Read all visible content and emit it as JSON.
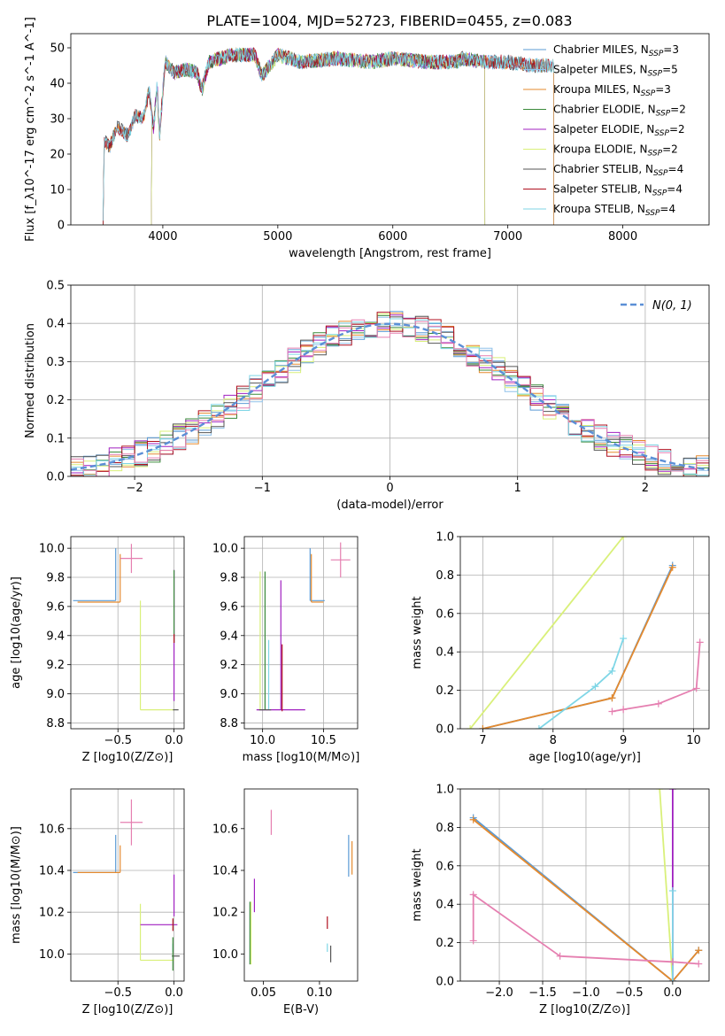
{
  "figure_title": "PLATE=1004, MJD=52723, FIBERID=0455, z=0.083",
  "colors": {
    "Chabrier MILES": "#5b9bd5",
    "Salpeter MILES": "#8fc1ea",
    "Kroupa MILES": "#e58a2e",
    "Chabrier ELODIE": "#3a8a3a",
    "Salpeter ELODIE": "#a020c0",
    "Kroupa ELODIE": "#d9f07a",
    "Chabrier STELIB": "#555555",
    "Salpeter STELIB": "#b01020",
    "Kroupa STELIB": "#7fd6e6",
    "pink": "#e57fb0",
    "normal_curve": "#5b8fd6",
    "grid": "#b0b0b0"
  },
  "chart_data": [
    {
      "id": "spectrum",
      "type": "line",
      "xlabel": "wavelength [Angstrom, rest frame]",
      "ylabel": "Flux [f_λ10^-17 erg cm^-2 s^-1 A^-1]",
      "xlim": [
        3200,
        8750
      ],
      "ylim": [
        0,
        54
      ],
      "xticks": [
        4000,
        5000,
        6000,
        7000,
        8000
      ],
      "yticks": [
        0,
        10,
        20,
        30,
        40,
        50
      ],
      "grid": false,
      "legend_position": "right",
      "legend": [
        {
          "name": "Chabrier MILES",
          "n": "3"
        },
        {
          "name": "Salpeter MILES",
          "n": "5"
        },
        {
          "name": "Kroupa MILES",
          "n": "3"
        },
        {
          "name": "Chabrier ELODIE",
          "n": "2"
        },
        {
          "name": "Salpeter ELODIE",
          "n": "2"
        },
        {
          "name": "Kroupa ELODIE",
          "n": "2"
        },
        {
          "name": "Chabrier STELIB",
          "n": "4"
        },
        {
          "name": "Salpeter STELIB",
          "n": "4"
        },
        {
          "name": "Kroupa STELIB",
          "n": "4"
        }
      ],
      "anchors": [
        [
          3480,
          0
        ],
        [
          3490,
          24
        ],
        [
          3540,
          22
        ],
        [
          3600,
          28
        ],
        [
          3700,
          25
        ],
        [
          3760,
          31
        ],
        [
          3830,
          30
        ],
        [
          3880,
          38
        ],
        [
          3920,
          27
        ],
        [
          3950,
          40
        ],
        [
          3970,
          25
        ],
        [
          4020,
          46
        ],
        [
          4100,
          43
        ],
        [
          4200,
          44
        ],
        [
          4300,
          43
        ],
        [
          4340,
          38
        ],
        [
          4400,
          46
        ],
        [
          4600,
          48
        ],
        [
          4800,
          48
        ],
        [
          4860,
          42
        ],
        [
          5000,
          48
        ],
        [
          5200,
          46
        ],
        [
          5500,
          47
        ],
        [
          5800,
          46
        ],
        [
          6000,
          47
        ],
        [
          6300,
          46
        ],
        [
          6563,
          46
        ],
        [
          6600,
          47
        ],
        [
          6800,
          46
        ],
        [
          7000,
          46
        ],
        [
          7200,
          45
        ],
        [
          7400,
          45
        ]
      ],
      "cutoffs": {
        "Chabrier MILES": [
          3480,
          7400
        ],
        "Salpeter MILES": [
          3480,
          7400
        ],
        "Kroupa MILES": [
          3480,
          7400
        ],
        "Chabrier ELODIE": [
          3900,
          6800
        ],
        "Salpeter ELODIE": [
          3900,
          6800
        ],
        "Kroupa ELODIE": [
          3900,
          6800
        ],
        "Chabrier STELIB": [
          3200,
          8750
        ],
        "Salpeter STELIB": [
          3200,
          8750
        ],
        "Kroupa STELIB": [
          3200,
          8750
        ]
      }
    },
    {
      "id": "residuals",
      "type": "histogram",
      "xlabel": "(data-model)/error",
      "ylabel": "Normed distribution",
      "xlim": [
        -2.5,
        2.5
      ],
      "ylim": [
        0,
        0.5
      ],
      "xticks": [
        -2,
        -1,
        0,
        1,
        2
      ],
      "yticks": [
        0.0,
        0.1,
        0.2,
        0.3,
        0.4,
        0.5
      ],
      "grid": true,
      "legend_position": "top-right",
      "legend": [
        "N(0, 1)"
      ],
      "bin_width": 0.1,
      "sigma": 1.0
    },
    {
      "id": "z-age",
      "type": "scatter",
      "xlabel": "Z [log10(Z/Z⊙)]",
      "ylabel": "age [log10(age/yr)]",
      "xlim": [
        -0.92,
        0.09
      ],
      "ylim": [
        8.76,
        10.08
      ],
      "xticks": [
        -0.5,
        0.0
      ],
      "yticks": [
        8.8,
        9.0,
        9.2,
        9.4,
        9.6,
        9.8,
        10.0
      ],
      "grid": true,
      "errorbars": [
        {
          "series": "Chabrier MILES",
          "x": -0.52,
          "y": 9.64,
          "x_err": [
            0.38,
            0.0
          ],
          "y_err": [
            0.0,
            0.36
          ]
        },
        {
          "series": "Kroupa MILES",
          "x": -0.48,
          "y": 9.63,
          "x_err": [
            0.38,
            0.0
          ],
          "y_err": [
            0.0,
            0.33
          ]
        },
        {
          "series": "pink",
          "x": -0.38,
          "y": 9.93,
          "x_err": [
            0.1,
            0.1
          ],
          "y_err": [
            0.1,
            0.1
          ]
        },
        {
          "series": "Kroupa ELODIE",
          "x": -0.3,
          "y": 8.89,
          "x_err": [
            0.0,
            0.3
          ],
          "y_err": [
            0.0,
            0.75
          ]
        },
        {
          "series": "Salpeter ELODIE",
          "x": 0.0,
          "y": 9.4,
          "x_err": [
            0.0,
            0.0
          ],
          "y_err": [
            0.45,
            0.45
          ]
        },
        {
          "series": "Chabrier ELODIE",
          "x": 0.0,
          "y": 9.6,
          "x_err": [
            0.0,
            0.0
          ],
          "y_err": [
            0.25,
            0.25
          ]
        },
        {
          "series": "Chabrier STELIB",
          "x": -0.01,
          "y": 8.89,
          "x_err": [
            0.0,
            0.05
          ],
          "y_err": [
            0.0,
            0.0
          ]
        },
        {
          "series": "Salpeter STELIB",
          "x": 0.0,
          "y": 9.38,
          "x_err": [
            0.0,
            0.0
          ],
          "y_err": [
            0.03,
            0.03
          ]
        }
      ]
    },
    {
      "id": "mass-age",
      "type": "scatter",
      "xlabel": "mass [log10(M/M⊙)]",
      "ylabel": "",
      "xlim": [
        9.85,
        10.78
      ],
      "ylim": [
        8.76,
        10.08
      ],
      "xticks": [
        10.0,
        10.5
      ],
      "yticks": [
        8.8,
        9.0,
        9.2,
        9.4,
        9.6,
        9.8,
        10.0
      ],
      "grid": true,
      "errorbars": [
        {
          "series": "Chabrier MILES",
          "x": 10.39,
          "y": 9.64,
          "x_err": [
            0.0,
            0.12
          ],
          "y_err": [
            0.0,
            0.36
          ]
        },
        {
          "series": "Kroupa MILES",
          "x": 10.4,
          "y": 9.63,
          "x_err": [
            0.0,
            0.1
          ],
          "y_err": [
            0.0,
            0.33
          ]
        },
        {
          "series": "pink",
          "x": 10.64,
          "y": 9.92,
          "x_err": [
            0.08,
            0.08
          ],
          "y_err": [
            0.12,
            0.12
          ]
        },
        {
          "series": "Kroupa ELODIE",
          "x": 9.98,
          "y": 8.89,
          "x_err": [
            0.0,
            0.0
          ],
          "y_err": [
            0.0,
            0.95
          ]
        },
        {
          "series": "Chabrier ELODIE",
          "x": 10.02,
          "y": 8.89,
          "x_err": [
            0.0,
            0.0
          ],
          "y_err": [
            0.0,
            0.95
          ]
        },
        {
          "series": "Kroupa STELIB",
          "x": 10.05,
          "y": 8.89,
          "x_err": [
            0.0,
            0.0
          ],
          "y_err": [
            0.0,
            0.48
          ]
        },
        {
          "series": "Salpeter ELODIE",
          "x": 10.15,
          "y": 8.89,
          "x_err": [
            0.2,
            0.2
          ],
          "y_err": [
            0.0,
            0.89
          ]
        },
        {
          "series": "Salpeter STELIB",
          "x": 10.16,
          "y": 8.88,
          "x_err": [
            0.0,
            0.0
          ],
          "y_err": [
            0.0,
            0.46
          ]
        },
        {
          "series": "Chabrier STELIB",
          "x": 10.02,
          "y": 8.89,
          "x_err": [
            0.05,
            0.05
          ],
          "y_err": [
            0.0,
            0.0
          ]
        }
      ]
    },
    {
      "id": "age-weight",
      "type": "line",
      "xlabel": "age [log10(age/yr)]",
      "ylabel": "mass weight",
      "xlim": [
        6.68,
        10.22
      ],
      "ylim": [
        0,
        1
      ],
      "xticks": [
        7,
        8,
        9,
        10
      ],
      "yticks": [
        0.0,
        0.2,
        0.4,
        0.6,
        0.8,
        1.0
      ],
      "grid": true,
      "series": [
        {
          "name": "Kroupa ELODIE",
          "points": [
            [
              6.82,
              0
            ],
            [
              9.0,
              1.0
            ]
          ]
        },
        {
          "name": "Chabrier MILES",
          "points": [
            [
              7.0,
              0
            ],
            [
              8.84,
              0.16
            ],
            [
              9.7,
              0.85
            ]
          ]
        },
        {
          "name": "Kroupa MILES",
          "points": [
            [
              7.0,
              0
            ],
            [
              8.84,
              0.16
            ],
            [
              9.7,
              0.84
            ]
          ]
        },
        {
          "name": "Kroupa STELIB",
          "points": [
            [
              7.8,
              0
            ],
            [
              8.6,
              0.22
            ],
            [
              8.84,
              0.3
            ],
            [
              9.0,
              0.47
            ]
          ]
        },
        {
          "name": "pink",
          "points": [
            [
              8.84,
              0.09
            ],
            [
              9.0,
              0.1
            ],
            [
              9.5,
              0.13
            ],
            [
              10.04,
              0.21
            ],
            [
              10.09,
              0.45
            ]
          ]
        }
      ]
    },
    {
      "id": "z-mass",
      "type": "scatter",
      "xlabel": "Z [log10(Z/Z⊙)]",
      "ylabel": "mass [log10(M/M⊙)]",
      "xlim": [
        -0.92,
        0.09
      ],
      "ylim": [
        9.87,
        10.79
      ],
      "xticks": [
        -0.5,
        0.0
      ],
      "yticks": [
        10.0,
        10.2,
        10.4,
        10.6
      ],
      "grid": true,
      "errorbars": [
        {
          "series": "Chabrier MILES",
          "x": -0.52,
          "y": 10.39,
          "x_err": [
            0.38,
            0.0
          ],
          "y_err": [
            0.0,
            0.18
          ]
        },
        {
          "series": "Kroupa MILES",
          "x": -0.48,
          "y": 10.39,
          "x_err": [
            0.38,
            0.0
          ],
          "y_err": [
            0.0,
            0.13
          ]
        },
        {
          "series": "pink",
          "x": -0.38,
          "y": 10.63,
          "x_err": [
            0.1,
            0.1
          ],
          "y_err": [
            0.11,
            0.11
          ]
        },
        {
          "series": "Kroupa ELODIE",
          "x": -0.3,
          "y": 9.97,
          "x_err": [
            0.0,
            0.3
          ],
          "y_err": [
            0.0,
            0.27
          ]
        },
        {
          "series": "Salpeter ELODIE",
          "x": -0.3,
          "y": 10.14,
          "x_err": [
            0.0,
            0.33
          ],
          "y_err": [
            0.0,
            0.0
          ]
        },
        {
          "series": "Salpeter STELIB",
          "x": -0.01,
          "y": 10.14,
          "x_err": [
            0.0,
            0.0
          ],
          "y_err": [
            0.03,
            0.03
          ]
        },
        {
          "series": "Chabrier STELIB",
          "x": 0.0,
          "y": 9.99,
          "x_err": [
            0.02,
            0.05
          ],
          "y_err": [
            0.0,
            0.0
          ]
        },
        {
          "series": "Kroupa STELIB",
          "x": -0.01,
          "y": 10.03,
          "x_err": [
            0.0,
            0.0
          ],
          "y_err": [
            0.02,
            0.02
          ]
        },
        {
          "series": "Chabrier ELODIE",
          "x": -0.01,
          "y": 10.0,
          "x_err": [
            0.0,
            0.0
          ],
          "y_err": [
            0.08,
            0.08
          ]
        },
        {
          "series": "Salpeter ELODIE",
          "x": 0.0,
          "y": 10.28,
          "x_err": [
            0.0,
            0.0
          ],
          "y_err": [
            0.1,
            0.1
          ]
        }
      ]
    },
    {
      "id": "ebv-mass",
      "type": "scatter",
      "xlabel": "E(B-V)",
      "ylabel": "",
      "xlim": [
        0.033,
        0.134
      ],
      "ylim": [
        9.87,
        10.79
      ],
      "xticks": [
        0.05,
        0.1
      ],
      "yticks": [
        10.0,
        10.2,
        10.4,
        10.6
      ],
      "grid": false,
      "errorbars": [
        {
          "series": "Chabrier ELODIE",
          "x": 0.038,
          "y": 10.1,
          "x_err": [
            0.0,
            0.0
          ],
          "y_err": [
            0.15,
            0.15
          ]
        },
        {
          "series": "Kroupa ELODIE",
          "x": 0.039,
          "y": 10.1,
          "x_err": [
            0.0,
            0.0
          ],
          "y_err": [
            0.15,
            0.15
          ]
        },
        {
          "series": "Salpeter ELODIE",
          "x": 0.042,
          "y": 10.28,
          "x_err": [
            0.0,
            0.0
          ],
          "y_err": [
            0.08,
            0.08
          ]
        },
        {
          "series": "pink",
          "x": 0.057,
          "y": 10.63,
          "x_err": [
            0.0,
            0.0
          ],
          "y_err": [
            0.06,
            0.06
          ]
        },
        {
          "series": "Salpeter STELIB",
          "x": 0.107,
          "y": 10.15,
          "x_err": [
            0.0,
            0.0
          ],
          "y_err": [
            0.03,
            0.03
          ]
        },
        {
          "series": "Kroupa STELIB",
          "x": 0.107,
          "y": 10.03,
          "x_err": [
            0.0,
            0.0
          ],
          "y_err": [
            0.02,
            0.02
          ]
        },
        {
          "series": "Chabrier STELIB",
          "x": 0.11,
          "y": 10.0,
          "x_err": [
            0.0,
            0.0
          ],
          "y_err": [
            0.04,
            0.04
          ]
        },
        {
          "series": "Chabrier MILES",
          "x": 0.126,
          "y": 10.47,
          "x_err": [
            0.0,
            0.0
          ],
          "y_err": [
            0.1,
            0.1
          ]
        },
        {
          "series": "Kroupa MILES",
          "x": 0.129,
          "y": 10.46,
          "x_err": [
            0.0,
            0.0
          ],
          "y_err": [
            0.08,
            0.08
          ]
        }
      ]
    },
    {
      "id": "z-weight",
      "type": "line",
      "xlabel": "Z [log10(Z/Z⊙)]",
      "ylabel": "mass weight",
      "xlim": [
        -2.45,
        0.42
      ],
      "ylim": [
        0,
        1
      ],
      "xticks": [
        -2.0,
        -1.5,
        -1.0,
        -0.5,
        0.0
      ],
      "yticks": [
        0.0,
        0.2,
        0.4,
        0.6,
        0.8,
        1.0
      ],
      "grid": true,
      "series": [
        {
          "name": "Chabrier MILES",
          "points": [
            [
              -2.3,
              0.85
            ],
            [
              0.0,
              0.0
            ],
            [
              0.3,
              0.16
            ]
          ]
        },
        {
          "name": "Kroupa MILES",
          "points": [
            [
              -2.3,
              0.84
            ],
            [
              0.0,
              0.0
            ],
            [
              0.3,
              0.16
            ]
          ]
        },
        {
          "name": "Kroupa ELODIE",
          "points": [
            [
              -0.15,
              1.0
            ],
            [
              0.0,
              0.0
            ]
          ]
        },
        {
          "name": "Salpeter ELODIE",
          "points": [
            [
              0.0,
              1.0
            ],
            [
              0.0,
              0.0
            ]
          ]
        },
        {
          "name": "Kroupa STELIB",
          "points": [
            [
              0.0,
              0.0
            ],
            [
              0.0,
              0.47
            ]
          ]
        },
        {
          "name": "pink",
          "points": [
            [
              -2.3,
              0.21
            ],
            [
              -2.3,
              0.45
            ],
            [
              -1.3,
              0.13
            ],
            [
              0.0,
              0.1
            ],
            [
              0.3,
              0.09
            ]
          ]
        }
      ]
    }
  ]
}
